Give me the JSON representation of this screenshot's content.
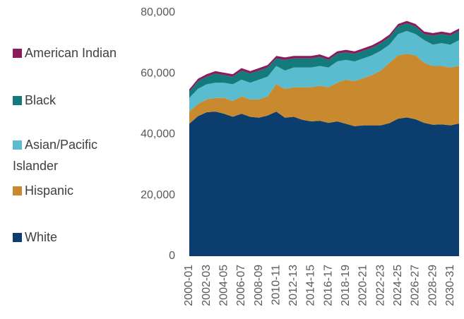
{
  "chart_data": {
    "type": "stacked_area",
    "categories": [
      "2000-01",
      null,
      "2002-03",
      null,
      "2004-05",
      null,
      "2006-07",
      null,
      "2008-09",
      null,
      "2010-11",
      null,
      "2012-13",
      null,
      "2014-15",
      null,
      "2016-17",
      null,
      "2018-19",
      null,
      "2020-21",
      null,
      "2022-23",
      null,
      "2024-25",
      null,
      "2026-27",
      null,
      "2028-29",
      null,
      "2030-31",
      null
    ],
    "series": [
      {
        "name": "White",
        "color": "#0b3d6e",
        "values": [
          43500,
          46000,
          47300,
          47500,
          46800,
          45800,
          46800,
          45800,
          45500,
          46200,
          47500,
          45500,
          45800,
          44800,
          44300,
          44500,
          43800,
          44300,
          43500,
          42700,
          43000,
          43000,
          43000,
          43700,
          45200,
          45600,
          45000,
          43800,
          43200,
          43300,
          43000,
          43600
        ]
      },
      {
        "name": "Hispanic",
        "color": "#c98a2f",
        "values": [
          4000,
          4000,
          4200,
          4500,
          5200,
          5200,
          5700,
          5700,
          6000,
          6300,
          9000,
          9500,
          9700,
          10700,
          11200,
          11500,
          11700,
          12700,
          14500,
          14800,
          15500,
          16500,
          18000,
          19800,
          20800,
          20900,
          21000,
          19700,
          19300,
          19200,
          19000,
          18900
        ]
      },
      {
        "name": "Asian/Pacific Islander",
        "color": "#5bbccf",
        "values": [
          4500,
          5000,
          5000,
          5000,
          5000,
          5500,
          5500,
          5500,
          6500,
          6500,
          6000,
          6000,
          6500,
          6500,
          6500,
          6500,
          6500,
          7000,
          6500,
          6500,
          6500,
          6500,
          6500,
          6000,
          7000,
          7500,
          7000,
          7500,
          7000,
          7500,
          7500,
          8500
        ]
      },
      {
        "name": "Black",
        "color": "#137b7c",
        "values": [
          2000,
          2500,
          2500,
          3000,
          2500,
          2500,
          3000,
          3000,
          3000,
          3000,
          2500,
          3500,
          3000,
          3000,
          3000,
          3000,
          2500,
          2500,
          2500,
          2500,
          2500,
          2500,
          2500,
          2500,
          2500,
          2500,
          2500,
          2000,
          3000,
          3000,
          3000,
          3000
        ]
      },
      {
        "name": "American Indian",
        "color": "#8c1b5c",
        "values": [
          800,
          800,
          800,
          800,
          800,
          800,
          800,
          800,
          800,
          800,
          800,
          800,
          800,
          800,
          800,
          800,
          800,
          800,
          800,
          800,
          800,
          800,
          800,
          800,
          800,
          800,
          800,
          800,
          800,
          800,
          800,
          800
        ]
      }
    ],
    "ylim": [
      0,
      80000
    ],
    "yticks": [
      0,
      {
        "value": 20000,
        "label": "20,000"
      },
      {
        "value": 40000,
        "label": "40,000"
      },
      {
        "value": 60000,
        "label": "60,000"
      },
      {
        "value": 80000,
        "label": "80,000"
      }
    ],
    "grid": false,
    "legend": "left"
  }
}
